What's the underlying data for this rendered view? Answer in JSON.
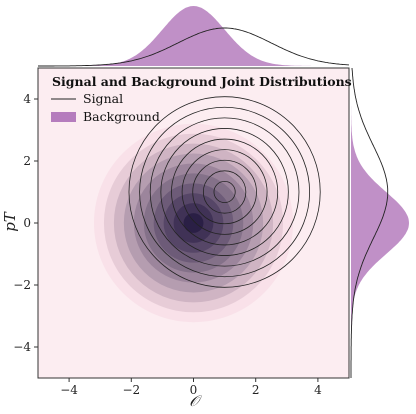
{
  "chart_data": {
    "type": "joint-kde",
    "title": "Signal and Background Joint Distributions",
    "xlabel": "𝒪",
    "ylabel": "pT",
    "xlim": [
      -5,
      5
    ],
    "ylim": [
      -5,
      5
    ],
    "xticks": [
      -4,
      -2,
      0,
      2,
      4
    ],
    "yticks": [
      -4,
      -2,
      0,
      2,
      4
    ],
    "xtick_labels": [
      "−4",
      "−2",
      "0",
      "2",
      "4"
    ],
    "ytick_labels": [
      "−4",
      "−2",
      "0",
      "2",
      "4"
    ],
    "legend_placement": "top-left",
    "grid": false,
    "series": [
      {
        "name": "Signal",
        "style": "line contours",
        "color": "#222222",
        "mean": [
          1,
          1
        ],
        "std": [
          1.5,
          1.5
        ]
      },
      {
        "name": "Background",
        "style": "filled contours",
        "color": "#b57cbd",
        "dark_color": "#2a1f45",
        "mean": [
          0,
          0
        ],
        "std": [
          1,
          1
        ]
      }
    ],
    "colors": {
      "plot_background": "#fcedf1",
      "background_fill": "#b57cbd",
      "signal_line": "#222222"
    }
  }
}
